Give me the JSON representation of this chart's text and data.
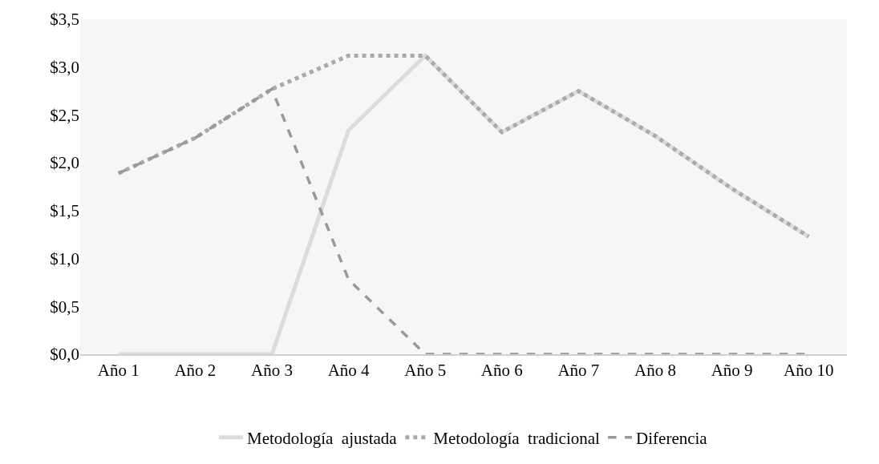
{
  "chart_data": {
    "type": "line",
    "categories": [
      "Año 1",
      "Año 2",
      "Año 3",
      "Año 4",
      "Año 5",
      "Año 6",
      "Año 7",
      "Año 8",
      "Año 9",
      "Año 10"
    ],
    "series": [
      {
        "name": "Metodología  ajustada",
        "color": "#dcdcdc",
        "line_style": "solid",
        "values": [
          0,
          0,
          0,
          2.34,
          3.12,
          2.32,
          2.75,
          2.28,
          1.73,
          1.23
        ]
      },
      {
        "name": "Metodología  tradicional",
        "color": "#aaaaaa",
        "line_style": "dotted",
        "values": [
          1.89,
          2.26,
          2.77,
          3.12,
          3.12,
          2.32,
          2.75,
          2.28,
          1.73,
          1.23
        ]
      },
      {
        "name": "Diferencia",
        "color": "#999999",
        "line_style": "dashed",
        "values": [
          1.89,
          2.26,
          2.77,
          0.78,
          0,
          0,
          0,
          0,
          0,
          0
        ]
      }
    ],
    "ylim": [
      0,
      3.5
    ],
    "yticks": [
      {
        "value": 0,
        "label": "$0,0"
      },
      {
        "value": 0.5,
        "label": "$0,5"
      },
      {
        "value": 1,
        "label": "$1,0"
      },
      {
        "value": 1.5,
        "label": "$1,5"
      },
      {
        "value": 2,
        "label": "$2,0"
      },
      {
        "value": 2.5,
        "label": "$2,5"
      },
      {
        "value": 3,
        "label": "$3,0"
      },
      {
        "value": 3.5,
        "label": "$3,5"
      }
    ],
    "grid": false,
    "legend": "bottom",
    "marker": "none"
  }
}
